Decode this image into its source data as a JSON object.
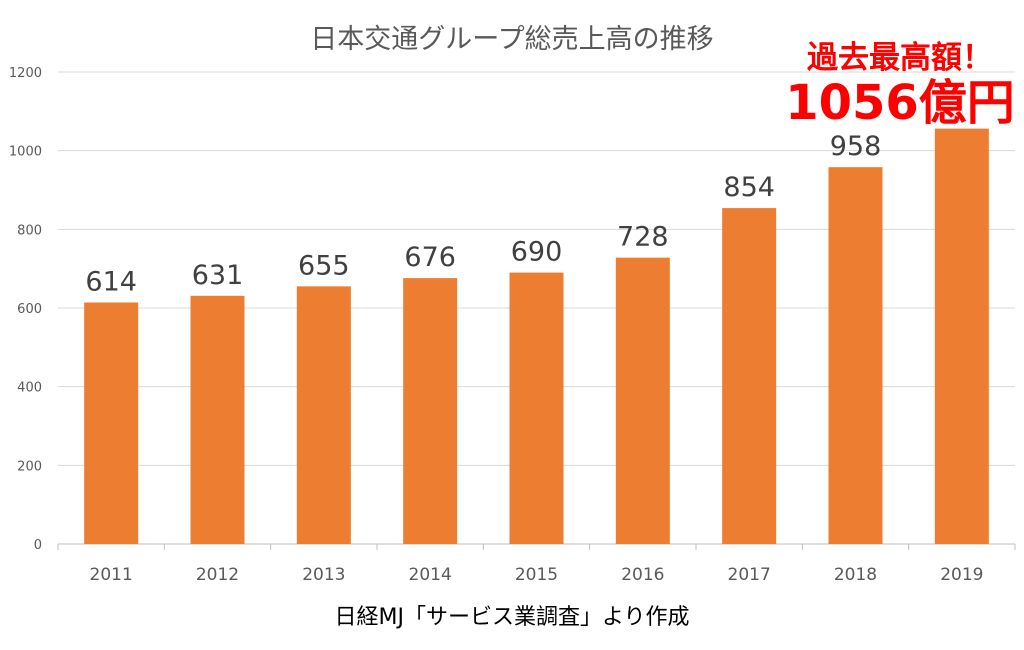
{
  "chart_data": {
    "type": "bar",
    "title": "日本交通グループ総売上高の推移",
    "categories": [
      "2011",
      "2012",
      "2013",
      "2014",
      "2015",
      "2016",
      "2017",
      "2018",
      "2019"
    ],
    "values": [
      614,
      631,
      655,
      676,
      690,
      728,
      854,
      958,
      1056
    ],
    "data_labels": [
      "614",
      "631",
      "655",
      "676",
      "690",
      "728",
      "854",
      "958",
      ""
    ],
    "yticks": [
      "0",
      "200",
      "400",
      "600",
      "800",
      "1000",
      "1200"
    ],
    "ylim": [
      0,
      1200
    ],
    "grid": true,
    "bar_color": "#ed7d31",
    "annotation": {
      "line1": "過去最高額！",
      "line2": "1056億円",
      "color": "#ff0000"
    },
    "source": "日経MJ「サービス業調査」より作成"
  }
}
